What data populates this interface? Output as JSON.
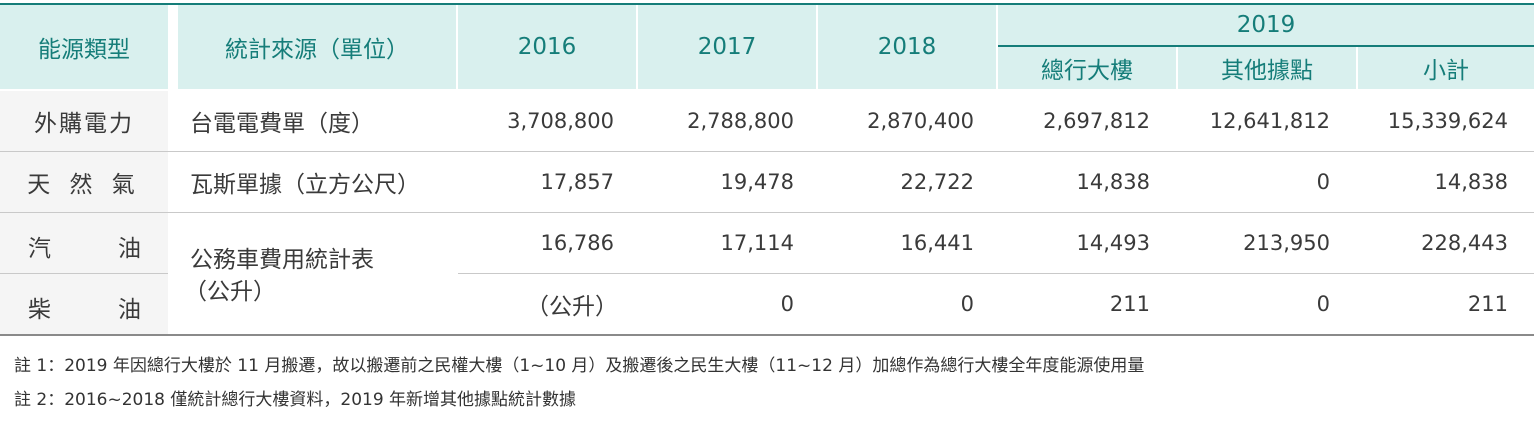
{
  "header": {
    "energy_type": "能源類型",
    "source": "統計來源（單位）",
    "y2016": "2016",
    "y2017": "2017",
    "y2018": "2018",
    "y2019": "2019",
    "sub_hq": "總行大樓",
    "sub_other": "其他據點",
    "sub_total": "小計"
  },
  "rows": [
    {
      "type": "外購電力",
      "source": "台電電費單（度）",
      "v2016": "3,708,800",
      "v2017": "2,788,800",
      "v2018": "2,870,400",
      "hq": "2,697,812",
      "other": "12,641,812",
      "total": "15,339,624"
    },
    {
      "type": "天 然 氣",
      "source": "瓦斯單據（立方公尺）",
      "v2016": "17,857",
      "v2017": "19,478",
      "v2018": "22,722",
      "hq": "14,838",
      "other": "0",
      "total": "14,838"
    },
    {
      "type_left": "汽",
      "type_right": "油",
      "source": "公務車費用統計表",
      "source_line2": "（公升）",
      "v2016": "16,786",
      "v2017": "17,114",
      "v2018": "16,441",
      "hq": "14,493",
      "other": "213,950",
      "total": "228,443"
    },
    {
      "type_left": "柴",
      "type_right": "油",
      "v2016": "（公升）",
      "v2017": "0",
      "v2018": "0",
      "hq": "211",
      "other": "0",
      "total": "211"
    }
  ],
  "notes": [
    "註 1：2019 年因總行大樓於 11 月搬遷，故以搬遷前之民權大樓（1~10 月）及搬遷後之民生大樓（11~12 月）加總作為總行大樓全年度能源使用量",
    "註 2：2016~2018 僅統計總行大樓資料，2019 年新增其他據點統計數據"
  ]
}
